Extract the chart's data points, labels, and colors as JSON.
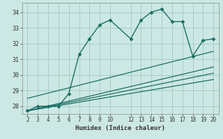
{
  "xlabel": "Humidex (Indice chaleur)",
  "ylabel": "",
  "background_color": "#cce8e4",
  "grid_color": "#aaccc8",
  "line_color": "#1a6e64",
  "xlim": [
    1.5,
    20.5
  ],
  "ylim": [
    27.5,
    34.6
  ],
  "xticks": [
    2,
    3,
    4,
    5,
    6,
    7,
    8,
    9,
    10,
    12,
    13,
    14,
    15,
    16,
    17,
    18,
    19,
    20
  ],
  "yticks": [
    28,
    29,
    30,
    31,
    32,
    33,
    34
  ],
  "series": [
    {
      "x": [
        2,
        3,
        4,
        5,
        6,
        7,
        8,
        9,
        10,
        12,
        13,
        14,
        15,
        16,
        17,
        18,
        19,
        20
      ],
      "y": [
        27.7,
        28.0,
        28.0,
        28.0,
        28.8,
        31.3,
        32.3,
        33.2,
        33.5,
        32.3,
        33.5,
        34.0,
        34.2,
        33.4,
        33.4,
        31.2,
        32.2,
        32.3
      ],
      "marker": "D",
      "markersize": 2.5,
      "linewidth": 1.0,
      "has_marker": true
    },
    {
      "x": [
        2,
        20
      ],
      "y": [
        28.5,
        31.5
      ],
      "marker": null,
      "markersize": 0,
      "linewidth": 0.9,
      "has_marker": false
    },
    {
      "x": [
        2,
        20
      ],
      "y": [
        27.7,
        30.5
      ],
      "marker": null,
      "markersize": 0,
      "linewidth": 0.9,
      "has_marker": false
    },
    {
      "x": [
        2,
        20
      ],
      "y": [
        27.7,
        30.1
      ],
      "marker": null,
      "markersize": 0,
      "linewidth": 0.9,
      "has_marker": false
    },
    {
      "x": [
        2,
        20
      ],
      "y": [
        27.7,
        29.7
      ],
      "marker": null,
      "markersize": 0,
      "linewidth": 0.9,
      "has_marker": false
    }
  ]
}
